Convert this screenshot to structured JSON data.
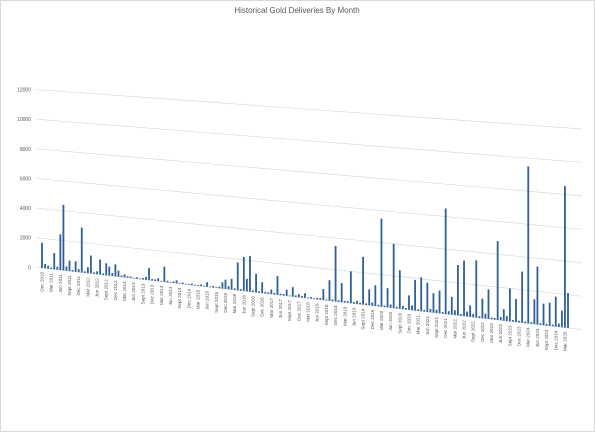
{
  "chart_data": {
    "type": "bar",
    "title": "Historical Gold Deliveries By Month",
    "categories": [
      "Dec 2010",
      null,
      null,
      "Mar 2011",
      null,
      null,
      "Jun 2011",
      null,
      null,
      "Sept 2011",
      null,
      null,
      "Dec 2011",
      null,
      null,
      "Mar 2012",
      null,
      null,
      "Jun 2012",
      null,
      null,
      "Sept 2012",
      null,
      null,
      "Dec 2012",
      null,
      null,
      "Mar 2013",
      null,
      null,
      "Jun 2013",
      null,
      null,
      "Sept 2013",
      null,
      null,
      "Dec 2013",
      null,
      null,
      "Mar 2014",
      null,
      null,
      "Jun 2014",
      null,
      null,
      "Sept 2014",
      null,
      null,
      "Dec 2014",
      null,
      null,
      "Mar 2015",
      null,
      null,
      "Jun 2015",
      null,
      null,
      "Sept 2015",
      null,
      null,
      "Dec 2015",
      null,
      null,
      "Mar 2016",
      null,
      null,
      "Jun 2016",
      null,
      null,
      "Sept 2016",
      null,
      null,
      "Dec 2016",
      null,
      null,
      "Mar 2017",
      null,
      null,
      "Jun 2017",
      null,
      null,
      "Sept 2017",
      null,
      null,
      "Dec 2017",
      null,
      null,
      "Mar 2018",
      null,
      null,
      "Jun 2018",
      null,
      null,
      "Sept 2018",
      null,
      null,
      "Dec 2018",
      null,
      null,
      "Mar 2019",
      null,
      null,
      "Jun 2019",
      null,
      null,
      "Sept 2019",
      null,
      null,
      "Dec 2019",
      null,
      null,
      "Mar 2020",
      null,
      null,
      "Jun 2020",
      null,
      null,
      "Sept 2020",
      null,
      null,
      "Dec 2020",
      null,
      null,
      "Mar 2021",
      null,
      null,
      "Jun 2021",
      null,
      null,
      "Sept 2021",
      null,
      null,
      "Dec 2021",
      null,
      null,
      "Mar 2022",
      null,
      null,
      "Jun 2022",
      null,
      null,
      "Sept 2022",
      null,
      null,
      "Dec 2022",
      null,
      null,
      "Mar 2023",
      null,
      null,
      "Jun 2023",
      null,
      null,
      "Sept 2023",
      null,
      null,
      "Dec 2023",
      null,
      null,
      "Mar 2024",
      null,
      null,
      "Jun 2024",
      null,
      null,
      "Sept 2024",
      null,
      null,
      "Dec 2024",
      null,
      null,
      "Mar 2025",
      null
    ],
    "values": [
      1700,
      300,
      200,
      100,
      1100,
      200,
      2400,
      4400,
      300,
      700,
      100,
      700,
      200,
      3000,
      100,
      400,
      1200,
      100,
      200,
      1000,
      100,
      800,
      600,
      200,
      800,
      400,
      100,
      200,
      100,
      100,
      50,
      100,
      50,
      100,
      200,
      800,
      100,
      100,
      200,
      50,
      1000,
      100,
      50,
      100,
      200,
      50,
      100,
      50,
      50,
      100,
      50,
      50,
      100,
      50,
      300,
      50,
      100,
      50,
      100,
      400,
      600,
      200,
      700,
      100,
      1800,
      100,
      2200,
      800,
      2300,
      100,
      1200,
      100,
      700,
      100,
      100,
      300,
      100,
      1200,
      100,
      100,
      400,
      50,
      600,
      100,
      200,
      100,
      300,
      50,
      100,
      50,
      100,
      100,
      700,
      50,
      1300,
      100,
      3500,
      100,
      1200,
      100,
      100,
      2000,
      100,
      200,
      100,
      3000,
      100,
      1000,
      200,
      1300,
      100,
      5500,
      100,
      1200,
      200,
      4000,
      100,
      2400,
      200,
      100,
      900,
      300,
      1900,
      100,
      2100,
      100,
      1800,
      200,
      1200,
      200,
      1400,
      100,
      6500,
      200,
      1100,
      300,
      3100,
      100,
      3400,
      300,
      700,
      200,
      3500,
      100,
      1200,
      300,
      1800,
      100,
      100,
      4800,
      200,
      700,
      300,
      2000,
      100,
      1400,
      100,
      3100,
      100,
      9500,
      100,
      1500,
      3500,
      100,
      1300,
      100,
      1400,
      100,
      1800,
      200,
      1000,
      8500,
      2100
    ],
    "color": "#2f5f98",
    "ylim": [
      0,
      12000
    ],
    "yticks": [
      0,
      2000,
      4000,
      6000,
      8000,
      10000,
      12000
    ],
    "grid": true
  }
}
